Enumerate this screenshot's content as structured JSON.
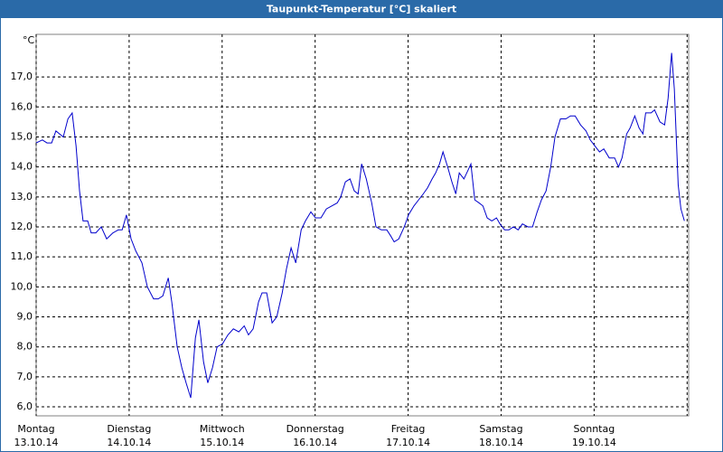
{
  "chart_data": {
    "type": "line",
    "title": "Taupunkt-Temperatur [°C] skaliert",
    "ylabel": "°C",
    "xlim": [
      0,
      168.4
    ],
    "ylim": [
      5.7,
      18.42
    ],
    "yticks": [
      {
        "value": 6,
        "label": "6,0"
      },
      {
        "value": 7,
        "label": "7,0"
      },
      {
        "value": 8,
        "label": "8,0"
      },
      {
        "value": 9,
        "label": "9,0"
      },
      {
        "value": 10,
        "label": "10,0"
      },
      {
        "value": 11,
        "label": "11,0"
      },
      {
        "value": 12,
        "label": "12,0"
      },
      {
        "value": 13,
        "label": "13,0"
      },
      {
        "value": 14,
        "label": "14,0"
      },
      {
        "value": 15,
        "label": "15,0"
      },
      {
        "value": 16,
        "label": "16,0"
      },
      {
        "value": 17,
        "label": "17,0"
      }
    ],
    "xticks": [
      {
        "value": 0,
        "label": "Montag"
      },
      {
        "value": 24,
        "label": "Dienstag"
      },
      {
        "value": 48,
        "label": "Mittwoch"
      },
      {
        "value": 72,
        "label": "Donnerstag"
      },
      {
        "value": 96,
        "label": "Freitag"
      },
      {
        "value": 120,
        "label": "Samstag"
      },
      {
        "value": 144,
        "label": "Sonntag"
      },
      {
        "value": 168,
        "label": ""
      }
    ],
    "xtick_dates": [
      "13.10.14",
      "14.10.14",
      "15.10.14",
      "16.10.14",
      "17.10.14",
      "18.10.14",
      "19.10.14"
    ],
    "grid": true,
    "series": [
      {
        "color": "#0000cc",
        "x": [
          0,
          1.6,
          2.8,
          4.0,
          5.1,
          7.0,
          8.2,
          9.3,
          10.3,
          11.2,
          12.1,
          13.3,
          14.2,
          15.4,
          16.8,
          18.2,
          19.8,
          21.2,
          22.2,
          23.3,
          24.5,
          25.7,
          27.3,
          28.7,
          30.3,
          31.5,
          32.7,
          34.1,
          35.0,
          36.4,
          37.6,
          38.7,
          39.9,
          41.1,
          42.0,
          43.2,
          44.3,
          45.5,
          46.7,
          48.1,
          49.5,
          50.9,
          52.3,
          53.7,
          54.8,
          56.0,
          57.4,
          58.3,
          59.5,
          60.9,
          62.1,
          63.5,
          64.6,
          65.8,
          67.0,
          68.4,
          69.5,
          70.9,
          72.1,
          73.5,
          74.9,
          76.3,
          77.7,
          78.6,
          79.8,
          81.0,
          82.1,
          83.1,
          84.0,
          85.2,
          86.6,
          87.7,
          89.1,
          90.5,
          91.5,
          92.4,
          93.6,
          95.0,
          96.1,
          97.5,
          98.7,
          99.9,
          101.0,
          102.2,
          103.1,
          104.1,
          105.0,
          106.2,
          107.3,
          108.3,
          109.2,
          110.4,
          111.5,
          112.2,
          113.2,
          114.3,
          115.3,
          116.4,
          117.6,
          118.8,
          119.7,
          120.9,
          122.0,
          123.2,
          124.4,
          125.5,
          126.9,
          128.1,
          129.3,
          130.4,
          131.6,
          132.8,
          133.9,
          135.3,
          136.7,
          137.9,
          139.1,
          140.5,
          141.9,
          143.0,
          144.2,
          145.4,
          146.5,
          147.9,
          149.3,
          150.3,
          151.2,
          152.4,
          153.3,
          154.5,
          155.6,
          156.6,
          157.3,
          158.7,
          159.6,
          161.0,
          162.2,
          163.1,
          164.0,
          164.7,
          165.7,
          166.4,
          167.3
        ],
        "values": [
          14.8,
          14.9,
          14.8,
          14.8,
          15.2,
          15.0,
          15.6,
          15.8,
          14.7,
          13.2,
          12.2,
          12.2,
          11.8,
          11.8,
          12.0,
          11.6,
          11.8,
          11.9,
          11.9,
          12.4,
          11.6,
          11.2,
          10.8,
          10.0,
          9.6,
          9.6,
          9.7,
          10.3,
          9.5,
          8.0,
          7.3,
          6.8,
          6.3,
          8.3,
          8.9,
          7.5,
          6.8,
          7.3,
          8.0,
          8.1,
          8.4,
          8.6,
          8.5,
          8.7,
          8.4,
          8.6,
          9.5,
          9.8,
          9.8,
          8.8,
          9.0,
          9.8,
          10.6,
          11.3,
          10.8,
          11.9,
          12.2,
          12.5,
          12.3,
          12.3,
          12.6,
          12.7,
          12.8,
          13.0,
          13.5,
          13.6,
          13.2,
          13.1,
          14.1,
          13.6,
          12.8,
          12.0,
          11.9,
          11.9,
          11.7,
          11.5,
          11.6,
          12.0,
          12.4,
          12.7,
          12.9,
          13.1,
          13.3,
          13.6,
          13.8,
          14.1,
          14.5,
          14.0,
          13.5,
          13.1,
          13.8,
          13.6,
          13.9,
          14.1,
          12.9,
          12.8,
          12.7,
          12.3,
          12.2,
          12.3,
          12.1,
          11.9,
          11.9,
          12.0,
          11.9,
          12.1,
          12.0,
          12.0,
          12.5,
          12.9,
          13.2,
          14.0,
          15.0,
          15.6,
          15.6,
          15.7,
          15.7,
          15.4,
          15.2,
          14.9,
          14.7,
          14.5,
          14.6,
          14.3,
          14.3,
          14.0,
          14.3,
          15.1,
          15.3,
          15.7,
          15.3,
          15.1,
          15.8,
          15.8,
          15.9,
          15.5,
          15.4,
          16.3,
          17.8,
          16.6,
          13.4,
          12.6,
          12.2
        ]
      }
    ]
  }
}
